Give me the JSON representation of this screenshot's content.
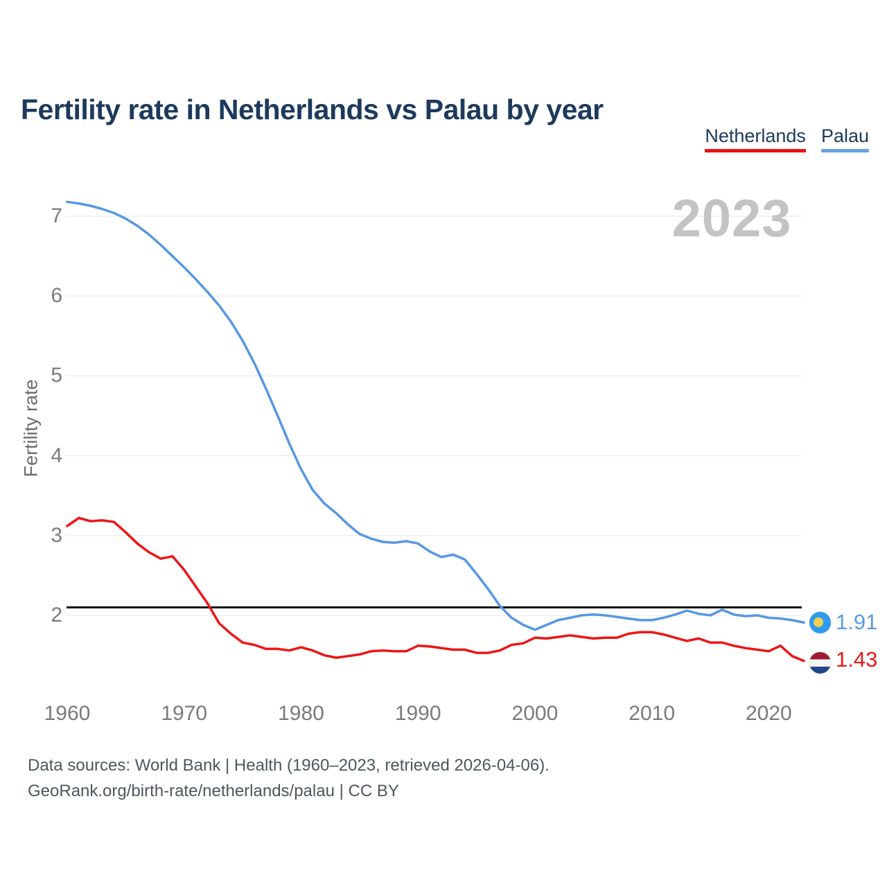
{
  "page": {
    "background": "#ffffff"
  },
  "title": {
    "text": "Fertility rate in Netherlands vs Palau by year",
    "color": "#1c3a5c"
  },
  "legend": {
    "text_color": "#1c3a5c",
    "items": [
      {
        "label": "Netherlands",
        "underline_color": "#ee1111"
      },
      {
        "label": "Palau",
        "underline_color": "#63a3e4"
      }
    ]
  },
  "watermark": {
    "text": "2023",
    "color": "#c3c3c3"
  },
  "end_labels": {
    "palau": {
      "value": "1.91",
      "color": "#5b9bdb"
    },
    "netherlands": {
      "value": "1.43",
      "color": "#ee1515"
    }
  },
  "flags": {
    "palau": {
      "bg": "#2e9bf0",
      "sun": "#f2d04d"
    },
    "netherlands": {
      "top": "#9e1b30",
      "mid": "#f5f5f5",
      "bottom": "#21468b"
    }
  },
  "footer": {
    "line1": "Data sources: World Bank | Health (1960–2023, retrieved 2026-04-06).",
    "line2": "GeoRank.org/birth-rate/netherlands/palau | CC BY"
  },
  "chart_data": {
    "type": "line",
    "title": "Fertility rate in Netherlands vs Palau by year",
    "xlabel": "",
    "ylabel": "Fertility rate",
    "x_start": 1960,
    "x_end": 2023,
    "xticks": [
      1960,
      1970,
      1980,
      1990,
      2000,
      2010,
      2020
    ],
    "yticks": [
      2,
      3,
      4,
      5,
      6,
      7
    ],
    "ylim": [
      1.2,
      7.4
    ],
    "grid": "horizontal",
    "legend_position": "top-right",
    "reference_line": {
      "value": 2.1,
      "color": "#111111",
      "meaning": "replacement-rate"
    },
    "series": [
      {
        "name": "Palau",
        "color": "#5598e3",
        "end_label": "1.91",
        "values": [
          7.18,
          7.16,
          7.13,
          7.09,
          7.04,
          6.97,
          6.88,
          6.77,
          6.64,
          6.5,
          6.36,
          6.21,
          6.05,
          5.88,
          5.68,
          5.44,
          5.16,
          4.84,
          4.5,
          4.15,
          3.83,
          3.57,
          3.4,
          3.28,
          3.14,
          3.02,
          2.96,
          2.92,
          2.91,
          2.93,
          2.9,
          2.8,
          2.73,
          2.76,
          2.7,
          2.52,
          2.33,
          2.12,
          1.97,
          1.88,
          1.82,
          1.88,
          1.94,
          1.97,
          2.0,
          2.01,
          2.0,
          1.98,
          1.96,
          1.94,
          1.94,
          1.97,
          2.01,
          2.06,
          2.02,
          2.0,
          2.07,
          2.01,
          1.99,
          2.0,
          1.97,
          1.96,
          1.94,
          1.91
        ]
      },
      {
        "name": "Netherlands",
        "color": "#ee1515",
        "end_label": "1.43",
        "values": [
          3.12,
          3.22,
          3.18,
          3.19,
          3.17,
          3.04,
          2.9,
          2.79,
          2.71,
          2.74,
          2.57,
          2.36,
          2.15,
          1.9,
          1.77,
          1.66,
          1.63,
          1.58,
          1.58,
          1.56,
          1.6,
          1.56,
          1.5,
          1.47,
          1.49,
          1.51,
          1.55,
          1.56,
          1.55,
          1.55,
          1.62,
          1.61,
          1.59,
          1.57,
          1.57,
          1.53,
          1.53,
          1.56,
          1.63,
          1.65,
          1.72,
          1.71,
          1.73,
          1.75,
          1.73,
          1.71,
          1.72,
          1.72,
          1.77,
          1.79,
          1.79,
          1.76,
          1.72,
          1.68,
          1.71,
          1.66,
          1.66,
          1.62,
          1.59,
          1.57,
          1.55,
          1.62,
          1.49,
          1.43
        ]
      }
    ]
  }
}
